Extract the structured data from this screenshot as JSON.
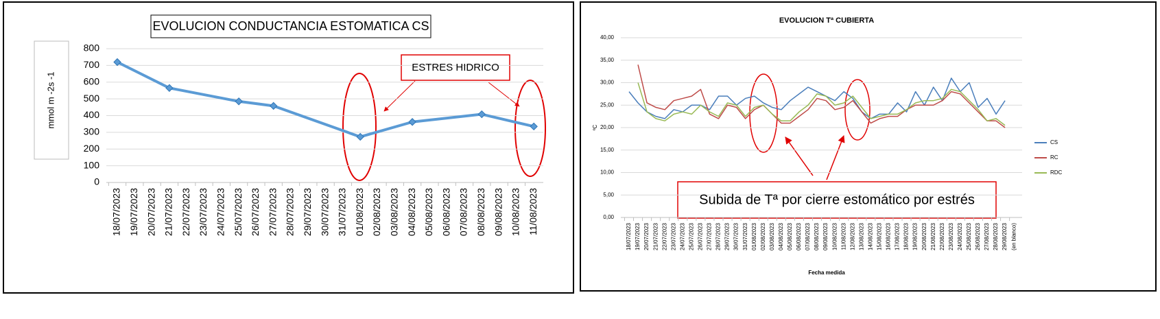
{
  "chart_data": [
    {
      "type": "line",
      "title": "EVOLUCION CONDUCTANCIA ESTOMATICA CS",
      "ylabel": "mmol m -2s -1",
      "annotations": [
        "ESTRES HIDRICO"
      ],
      "categories": [
        "18/07/2023",
        "19/07/2023",
        "20/07/2023",
        "21/07/2023",
        "22/07/2023",
        "23/07/2023",
        "24/07/2023",
        "25/07/2023",
        "26/07/2023",
        "27/07/2023",
        "28/07/2023",
        "29/07/2023",
        "30/07/2023",
        "31/07/2023",
        "01/08/2023",
        "02/08/2023",
        "03/08/2023",
        "04/08/2023",
        "05/08/2023",
        "06/08/2023",
        "07/08/2023",
        "08/08/2023",
        "09/08/2023",
        "10/08/2023",
        "11/08/2023"
      ],
      "series": [
        {
          "color": "#5b9bd5",
          "x": [
            "18/07/2023",
            "21/07/2023",
            "25/07/2023",
            "27/07/2023",
            "01/08/2023",
            "04/08/2023",
            "08/08/2023",
            "11/08/2023"
          ],
          "values": [
            720,
            565,
            485,
            458,
            273,
            362,
            408,
            335
          ]
        }
      ],
      "ylim": [
        0,
        800
      ],
      "yticks": [
        0,
        100,
        200,
        300,
        400,
        500,
        600,
        700,
        800
      ],
      "grid": true,
      "markers": "diamond"
    },
    {
      "type": "line",
      "title": "EVOLUCION Tª CUBIERTA",
      "ylabel": "ºC",
      "xlabel": "Fecha medida",
      "annotations": [
        "Subida de Tª por cierre estomático por estrés"
      ],
      "categories": [
        "18/07/2023",
        "19/07/2023",
        "20/07/2023",
        "21/07/2023",
        "22/07/2023",
        "23/07/2023",
        "24/07/2023",
        "25/07/2023",
        "26/07/2023",
        "27/07/2023",
        "28/07/2023",
        "29/07/2023",
        "30/07/2023",
        "31/07/2023",
        "01/08/2023",
        "02/08/2023",
        "03/08/2023",
        "04/08/2023",
        "05/08/2023",
        "06/08/2023",
        "07/08/2023",
        "08/08/2023",
        "09/08/2023",
        "10/08/2023",
        "11/08/2023",
        "12/08/2023",
        "13/08/2023",
        "14/08/2023",
        "15/08/2023",
        "16/08/2023",
        "17/08/2023",
        "18/08/2023",
        "19/08/2023",
        "20/08/2023",
        "21/08/2023",
        "22/08/2023",
        "23/08/2023",
        "24/08/2023",
        "25/08/2023",
        "26/08/2023",
        "27/08/2023",
        "28/08/2023",
        "29/08/2023",
        "(en blanco)"
      ],
      "series": [
        {
          "name": "CS",
          "color": "#4a7ebb",
          "values": [
            28,
            25.5,
            23.5,
            22.5,
            22,
            24,
            23.5,
            25,
            25,
            24,
            27,
            27,
            25,
            26.5,
            27,
            25.5,
            24.5,
            24,
            26,
            27.5,
            29,
            28,
            27,
            26,
            28,
            26.5,
            23.5,
            22,
            23,
            23,
            25.5,
            23.5,
            28,
            25,
            29,
            26,
            31,
            28,
            30,
            24.5,
            26.5,
            23,
            26,
            null
          ]
        },
        {
          "name": "RC",
          "color": "#be4b48",
          "values": [
            null,
            34,
            25.5,
            24.5,
            24,
            26,
            26.5,
            27,
            28.5,
            23,
            22,
            25,
            24.5,
            22,
            24,
            25,
            23,
            21,
            21,
            22.5,
            24,
            26.5,
            26,
            24,
            24.5,
            26,
            23.5,
            21,
            22,
            22.5,
            22.5,
            24,
            25,
            25,
            25,
            26,
            28,
            27.5,
            25.5,
            23.5,
            21.5,
            21.5,
            20,
            null
          ]
        },
        {
          "name": "RDC",
          "color": "#98b954",
          "values": [
            null,
            30,
            23.5,
            22,
            21.5,
            23,
            23.5,
            23,
            25,
            23.5,
            22.5,
            25.5,
            25,
            22.5,
            24.5,
            25,
            23,
            21.5,
            21.5,
            23.5,
            25,
            27.5,
            27,
            25,
            25.5,
            27,
            24.5,
            22,
            22.5,
            23,
            23,
            24,
            25.5,
            26,
            26,
            26.5,
            28.5,
            28,
            26,
            24,
            21.5,
            22,
            20.5,
            null
          ]
        }
      ],
      "ylim": [
        0,
        40
      ],
      "yticks": [
        {
          "value": 0,
          "label": "0,00"
        },
        {
          "value": 5,
          "label": "5,00"
        },
        {
          "value": 10,
          "label": "10,00"
        },
        {
          "value": 15,
          "label": "15,00"
        },
        {
          "value": 20,
          "label": "20,00"
        },
        {
          "value": 25,
          "label": "25,00"
        },
        {
          "value": 30,
          "label": "30,00"
        },
        {
          "value": 35,
          "label": "35,00"
        },
        {
          "value": 40,
          "label": "40,00"
        }
      ],
      "grid": true,
      "legend": "right"
    }
  ]
}
